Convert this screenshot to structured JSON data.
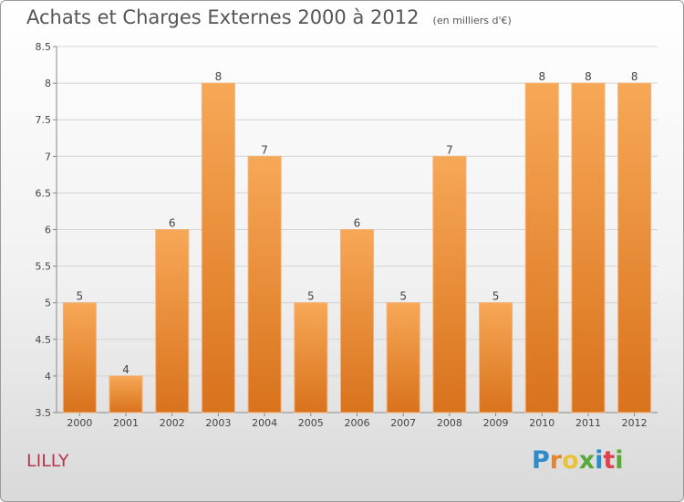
{
  "chart_data": {
    "type": "bar",
    "title": "Achats et Charges Externes 2000 à 2012",
    "subtitle": "(en milliers d'€)",
    "categories": [
      "2000",
      "2001",
      "2002",
      "2003",
      "2004",
      "2005",
      "2006",
      "2007",
      "2008",
      "2009",
      "2010",
      "2011",
      "2012"
    ],
    "values": [
      5,
      4,
      6,
      8,
      7,
      5,
      6,
      5,
      7,
      5,
      8,
      8,
      8
    ],
    "ylim": [
      3.5,
      8.5
    ],
    "yticks": [
      "3.5",
      "4",
      "4.5",
      "5",
      "5.5",
      "6",
      "6.5",
      "7",
      "7.5",
      "8",
      "8.5"
    ],
    "grid": true,
    "bar_color": "#f0892b"
  },
  "commune": "LILLY",
  "logo": {
    "letters": [
      "P",
      "r",
      "o",
      "x",
      "i",
      "t",
      "i"
    ],
    "colors": [
      "#2e8bc9",
      "#e8842a",
      "#e8c23a",
      "#5aa83a",
      "#2e8bc9",
      "#d9434f",
      "#5aa83a"
    ]
  }
}
